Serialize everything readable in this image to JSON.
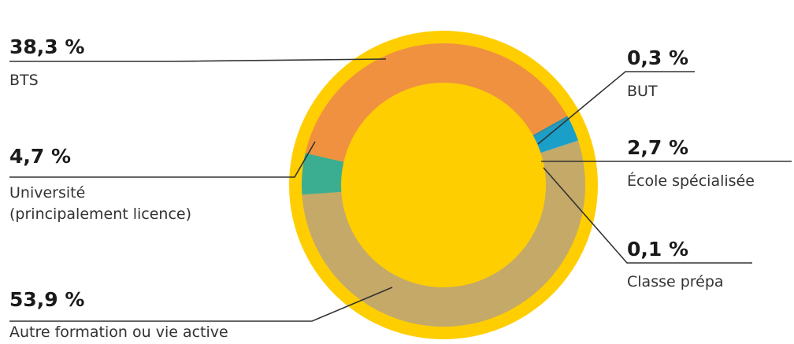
{
  "chart_data": {
    "type": "pie",
    "title": "",
    "colors": {
      "outer_ring": "#FFCE00",
      "leader_line": "#333333"
    },
    "slices": [
      {
        "value": 38.3,
        "value_label": "38,3 %",
        "label_lines": [
          "BTS"
        ],
        "color": "#F0913F"
      },
      {
        "value": 0.3,
        "value_label": "0,3 %",
        "label_lines": [
          "BUT"
        ],
        "color": "#2A8FB0"
      },
      {
        "value": 2.7,
        "value_label": "2,7 %",
        "label_lines": [
          "École spécialisée"
        ],
        "color": "#1A9FC9"
      },
      {
        "value": 0.1,
        "value_label": "0,1 %",
        "label_lines": [
          "Classe prépa"
        ],
        "color": "#9AA7A4"
      },
      {
        "value": 53.9,
        "value_label": "53,9 %",
        "label_lines": [
          "Autre formation ou vie active"
        ],
        "color": "#C4A968"
      },
      {
        "value": 4.7,
        "value_label": "4,7 %",
        "label_lines": [
          "Université",
          "(principalement licence)"
        ],
        "color": "#3BAE92"
      }
    ]
  }
}
